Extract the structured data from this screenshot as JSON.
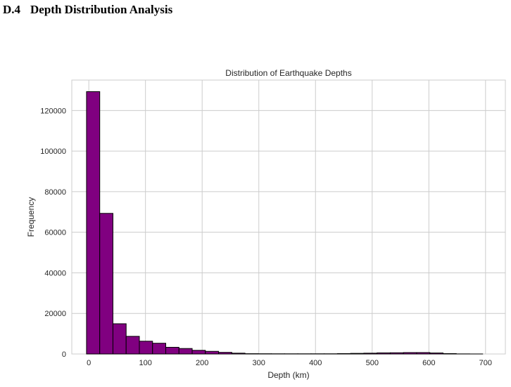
{
  "section": {
    "number": "D.4",
    "title": "Depth Distribution Analysis"
  },
  "chart_data": {
    "type": "bar",
    "title": "Distribution of Earthquake Depths",
    "xlabel": "Depth (km)",
    "ylabel": "Frequency",
    "xlim": [
      -30,
      735
    ],
    "ylim": [
      0,
      135000
    ],
    "xticks": [
      0,
      100,
      200,
      300,
      400,
      500,
      600,
      700
    ],
    "yticks": [
      0,
      20000,
      40000,
      60000,
      80000,
      100000,
      120000
    ],
    "grid": true,
    "bar_color": "#800080",
    "edge_color": "#000000",
    "bin_edges": [
      -4,
      19.3,
      42.6,
      65.9,
      89.2,
      112.5,
      135.8,
      159.1,
      182.4,
      205.7,
      229.0,
      252.3,
      275.6,
      298.9,
      322.2,
      345.5,
      368.8,
      392.1,
      415.4,
      438.7,
      462.0,
      485.3,
      508.6,
      531.9,
      555.2,
      578.5,
      601.8,
      625.1,
      648.4,
      671.7,
      695.0
    ],
    "values": [
      129300,
      69300,
      14900,
      8700,
      6300,
      5300,
      3300,
      2700,
      1800,
      1300,
      800,
      400,
      150,
      120,
      100,
      90,
      90,
      100,
      100,
      200,
      300,
      400,
      550,
      600,
      700,
      700,
      500,
      200,
      50,
      20
    ]
  }
}
